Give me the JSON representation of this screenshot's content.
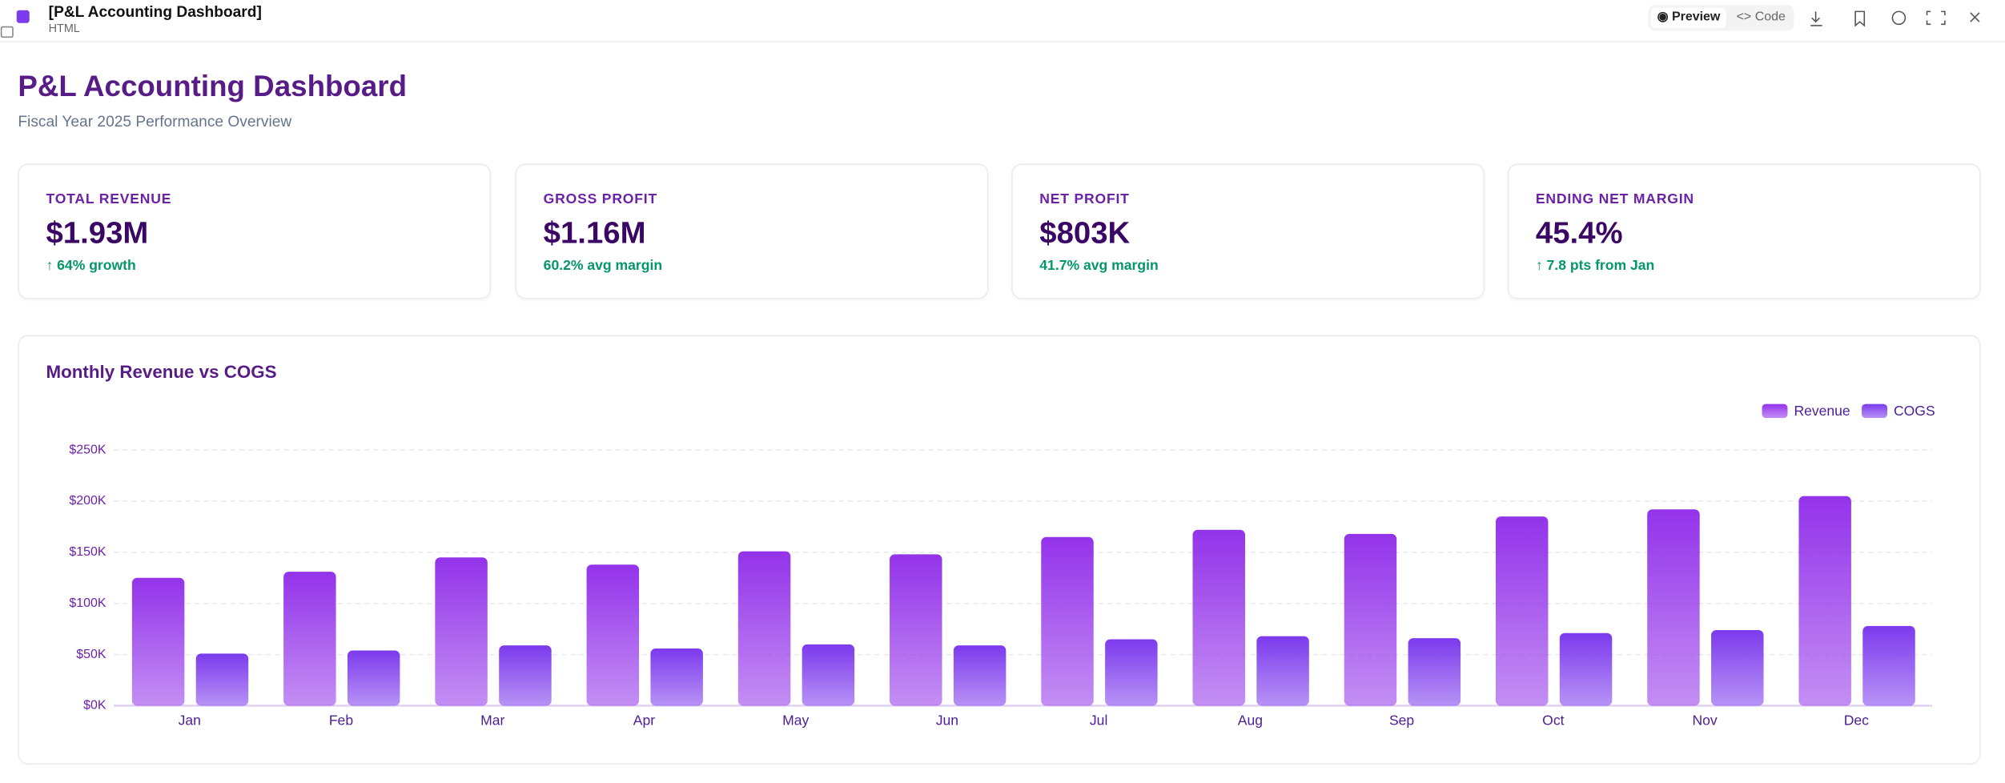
{
  "topbar": {
    "title": "[P&L Accounting Dashboard]",
    "subtitle": "HTML",
    "preview": "Preview",
    "code": "Code"
  },
  "header": {
    "title": "P&L Accounting Dashboard",
    "subtitle": "Fiscal Year 2025 Performance Overview"
  },
  "kpis": [
    {
      "label": "TOTAL REVENUE",
      "value": "$1.93M",
      "note": "↑ 64% growth"
    },
    {
      "label": "GROSS PROFIT",
      "value": "$1.16M",
      "note": "60.2% avg margin"
    },
    {
      "label": "NET PROFIT",
      "value": "$803K",
      "note": "41.7% avg margin"
    },
    {
      "label": "ENDING NET MARGIN",
      "value": "45.4%",
      "note": "↑ 7.8 pts from Jan"
    }
  ],
  "chart_data": {
    "type": "bar",
    "title": "Monthly Revenue vs COGS",
    "categories": [
      "Jan",
      "Feb",
      "Mar",
      "Apr",
      "May",
      "Jun",
      "Jul",
      "Aug",
      "Sep",
      "Oct",
      "Nov",
      "Dec"
    ],
    "series": [
      {
        "name": "Revenue",
        "color": "#9333ea",
        "values": [
          125,
          131,
          145,
          138,
          151,
          148,
          165,
          172,
          168,
          185,
          192,
          205
        ]
      },
      {
        "name": "COGS",
        "color": "#7c3aed",
        "values": [
          51,
          54,
          59,
          56,
          60,
          59,
          65,
          68,
          66,
          71,
          74,
          78
        ]
      }
    ],
    "ylim": [
      0,
      250
    ],
    "yticks": [
      {
        "value": 0,
        "label": "$0K"
      },
      {
        "value": 50,
        "label": "$50K"
      },
      {
        "value": 100,
        "label": "$100K"
      },
      {
        "value": 150,
        "label": "$150K"
      },
      {
        "value": 200,
        "label": "$200K"
      },
      {
        "value": 250,
        "label": "$250K"
      }
    ],
    "grid": true,
    "legend": "top-right"
  }
}
